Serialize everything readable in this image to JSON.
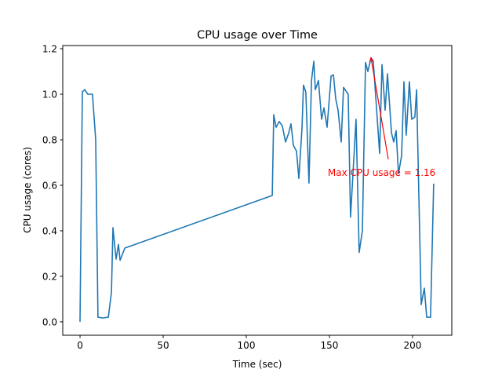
{
  "chart_data": {
    "type": "line",
    "title": "CPU usage over Time",
    "xlabel": "Time (sec)",
    "ylabel": "CPU usage (cores)",
    "xlim": [
      -10.4,
      223.6
    ],
    "ylim": [
      -0.059,
      1.214
    ],
    "xticks": [
      0,
      50,
      100,
      150,
      200
    ],
    "xtick_labels": [
      "0",
      "50",
      "100",
      "150",
      "200"
    ],
    "yticks": [
      0.0,
      0.2,
      0.4,
      0.6,
      0.8,
      1.0,
      1.2
    ],
    "ytick_labels": [
      "0.0",
      "0.2",
      "0.4",
      "0.6",
      "0.8",
      "1.0",
      "1.2"
    ],
    "grid": false,
    "line_color": "#1f77b4",
    "series": [
      {
        "x": [
          0,
          1.4,
          2.8,
          4.7,
          7.5,
          9.4,
          10.8,
          13.7,
          17,
          18.9,
          19.8,
          21.7,
          23.1,
          24.1,
          25.5,
          26.9,
          115.6,
          116.5,
          117.9,
          119.8,
          121.7,
          123.6,
          125.5,
          126.9,
          128.3,
          130.2,
          131.6,
          133.5,
          134.4,
          135.8,
          137.7,
          139.2,
          140.6,
          141.5,
          143.4,
          145.3,
          146.7,
          148.6,
          151,
          152.4,
          153.8,
          155.2,
          157.1,
          158.5,
          161.3,
          162.7,
          166,
          167.9,
          169.8,
          171.7,
          173.1,
          175,
          176.4,
          180.2,
          181.6,
          183.5,
          184.9,
          187.3,
          188.7,
          190.1,
          191.5,
          193.4,
          194.8,
          196.2,
          198.1,
          199.5,
          201.4,
          202.4,
          205.2,
          207.1,
          208.5,
          210.8,
          212.7
        ],
        "y": [
          0,
          1.01,
          1.02,
          1.0,
          1.0,
          0.8,
          0.02,
          0.017,
          0.02,
          0.13,
          0.414,
          0.276,
          0.34,
          0.27,
          0.297,
          0.324,
          0.555,
          0.91,
          0.855,
          0.88,
          0.86,
          0.79,
          0.83,
          0.87,
          0.776,
          0.75,
          0.63,
          0.85,
          1.04,
          1.01,
          0.61,
          1.06,
          1.145,
          1.02,
          1.06,
          0.89,
          0.94,
          0.855,
          1.08,
          1.085,
          0.98,
          0.93,
          0.79,
          1.03,
          1.0,
          0.46,
          0.89,
          0.305,
          0.4,
          1.14,
          1.1,
          1.16,
          1.14,
          0.74,
          1.13,
          0.93,
          1.09,
          0.83,
          0.79,
          0.84,
          0.65,
          0.73,
          1.055,
          0.82,
          1.055,
          0.89,
          0.9,
          1.02,
          0.076,
          0.148,
          0.02,
          0.02,
          0.607
        ]
      }
    ],
    "annotation": {
      "text": "Max CPU usage = 1.16",
      "xy": [
        175,
        1.16
      ],
      "xytext": [
        149,
        0.655
      ],
      "arrow_tail": [
        185.4,
        0.714
      ],
      "color": "#ff0000"
    }
  }
}
